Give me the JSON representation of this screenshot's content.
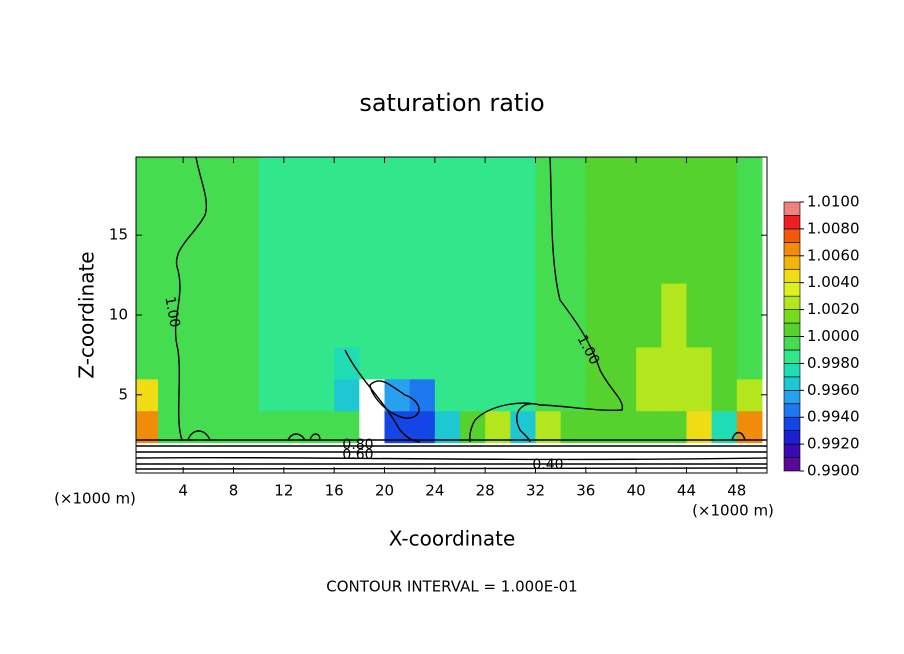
{
  "chart_data": {
    "type": "contour",
    "title": "saturation ratio",
    "xlabel": "X-coordinate",
    "ylabel": "Z-coordinate",
    "x_unit_label": "(×1000 m)",
    "footer": "CONTOUR INTERVAL = 1.000E-01",
    "contour_labels": [
      "1.00",
      "1.00",
      "0.80",
      "0.60",
      "0.40"
    ],
    "xlim": [
      0.25,
      50.4
    ],
    "ylim": [
      0.1,
      19.9
    ],
    "xticks": [
      4,
      8,
      12,
      16,
      20,
      24,
      28,
      32,
      36,
      40,
      44,
      48
    ],
    "yticks": [
      5,
      10,
      15
    ],
    "xbins": [
      0,
      2,
      4,
      6,
      8,
      10,
      12,
      14,
      16,
      18,
      20,
      22,
      24,
      26,
      28,
      30,
      32,
      34,
      36,
      38,
      40,
      42,
      44,
      46,
      48,
      50
    ],
    "zbins": [
      0,
      2,
      4,
      6,
      8,
      10,
      12,
      14,
      16,
      18,
      20
    ],
    "values": [
      [
        0.7,
        0.7,
        0.7,
        0.7,
        0.7,
        0.7,
        0.7,
        0.7,
        0.7,
        0.7,
        0.7,
        0.7,
        0.7,
        0.7,
        0.7,
        0.7,
        0.7,
        0.7,
        0.7,
        0.7,
        0.7,
        0.7,
        0.7,
        0.7,
        0.7
      ],
      [
        1.006,
        0.9995,
        0.9995,
        0.9995,
        0.9995,
        0.9995,
        0.9995,
        0.9995,
        0.9995,
        0.7,
        0.993,
        0.993,
        0.996,
        1.0,
        1.003,
        0.996,
        1.003,
        1.0,
        1.0,
        1.0,
        1.0,
        1.0,
        1.004,
        0.997,
        1.007
      ],
      [
        1.004,
        0.9995,
        0.9995,
        0.9995,
        0.9995,
        0.9985,
        0.9985,
        0.9985,
        0.996,
        0.7,
        0.995,
        0.994,
        0.9985,
        0.9985,
        0.9985,
        0.9985,
        0.9995,
        0.9995,
        1.0005,
        1.0005,
        1.002,
        1.003,
        1.002,
        1.0005,
        1.003
      ],
      [
        0.9995,
        0.9995,
        0.9995,
        0.9995,
        0.9995,
        0.9985,
        0.9985,
        0.9985,
        0.997,
        0.9985,
        0.9985,
        0.9985,
        0.9985,
        0.9985,
        0.9985,
        0.9985,
        0.9995,
        0.9995,
        1.0005,
        1.0005,
        1.002,
        1.003,
        1.002,
        1.0005,
        0.9995
      ],
      [
        0.9995,
        0.9995,
        0.9995,
        0.9995,
        0.9995,
        0.9985,
        0.9985,
        0.9985,
        0.9985,
        0.9985,
        0.9985,
        0.9985,
        0.9985,
        0.9985,
        0.9985,
        0.9985,
        0.9995,
        0.9995,
        1.0005,
        1.0005,
        1.001,
        1.002,
        1.001,
        1.0005,
        0.9995
      ],
      [
        0.9995,
        0.9995,
        0.9995,
        0.9995,
        0.9995,
        0.9985,
        0.9985,
        0.9985,
        0.9985,
        0.9985,
        0.9985,
        0.9985,
        0.9985,
        0.9985,
        0.9985,
        0.9985,
        0.9995,
        0.9995,
        1.0005,
        1.001,
        1.001,
        1.002,
        1.001,
        1.0005,
        0.9995
      ],
      [
        0.9995,
        0.9995,
        0.9995,
        0.9995,
        0.9995,
        0.9985,
        0.9985,
        0.9985,
        0.9985,
        0.9985,
        0.9985,
        0.9985,
        0.9985,
        0.9985,
        0.9985,
        0.9985,
        0.9995,
        0.9995,
        1.0005,
        1.0005,
        1.001,
        1.001,
        1.0005,
        1.0005,
        0.9995
      ],
      [
        0.9995,
        0.9995,
        0.9995,
        0.9995,
        0.9995,
        0.9985,
        0.9985,
        0.9985,
        0.9985,
        0.9985,
        0.9985,
        0.9985,
        0.9985,
        0.9985,
        0.9985,
        0.9985,
        0.9995,
        0.9995,
        1.0005,
        1.0005,
        1.0005,
        1.0005,
        1.0005,
        1.0005,
        0.9995
      ],
      [
        0.9995,
        0.9995,
        0.9995,
        0.9995,
        0.9995,
        0.9985,
        0.9985,
        0.9985,
        0.9985,
        0.9985,
        0.9985,
        0.9985,
        0.9985,
        0.9985,
        0.9985,
        0.9985,
        0.9995,
        0.9995,
        1.0005,
        1.0005,
        1.0005,
        1.0005,
        1.0005,
        1.0005,
        0.9995
      ],
      [
        0.9995,
        0.9995,
        0.9995,
        0.9995,
        0.9995,
        0.9985,
        0.9985,
        0.9985,
        0.9985,
        0.9985,
        0.9985,
        0.9985,
        0.9985,
        0.9985,
        0.9985,
        0.9985,
        0.9995,
        0.9995,
        1.0005,
        1.0005,
        1.0005,
        1.0005,
        1.0005,
        1.0005,
        0.9995
      ]
    ],
    "colorbar": {
      "ticks": [
        {
          "value": 0.99,
          "label": "0.9900"
        },
        {
          "value": 0.992,
          "label": "0.9920"
        },
        {
          "value": 0.994,
          "label": "0.9940"
        },
        {
          "value": 0.996,
          "label": "0.9960"
        },
        {
          "value": 0.998,
          "label": "0.9980"
        },
        {
          "value": 1.0,
          "label": "1.0000"
        },
        {
          "value": 1.002,
          "label": "1.0020"
        },
        {
          "value": 1.004,
          "label": "1.0040"
        },
        {
          "value": 1.006,
          "label": "1.0060"
        },
        {
          "value": 1.008,
          "label": "1.0080"
        },
        {
          "value": 1.01,
          "label": "1.0100"
        }
      ],
      "colors": [
        "#5a0a96",
        "#3a0ab4",
        "#1e1ed2",
        "#1446e6",
        "#1e78f0",
        "#28a0f0",
        "#1ec8d2",
        "#1edcb4",
        "#32e68c",
        "#46dc50",
        "#55d22d",
        "#78dc1e",
        "#b4e61e",
        "#dcf01e",
        "#f0dc14",
        "#f0b40a",
        "#f08c0a",
        "#f05a0a",
        "#f01e1e",
        "#f08080"
      ]
    }
  }
}
